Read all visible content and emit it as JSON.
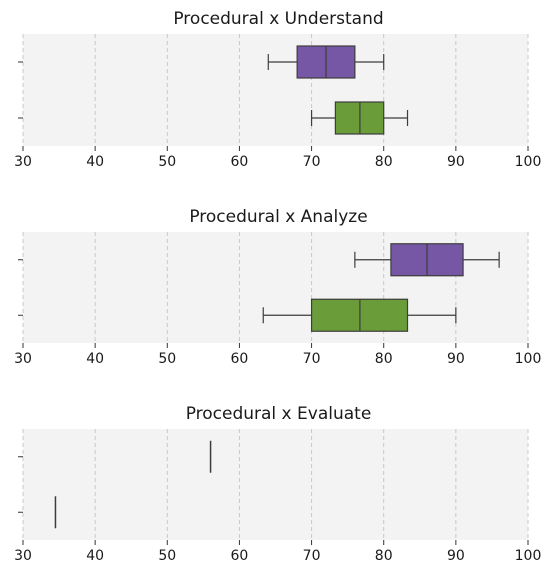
{
  "colors": {
    "panel_bg": "#f3f3f3",
    "grid": "#c8c8c8",
    "series_top": "#7657a6",
    "series_bottom": "#6a9c3a",
    "box_edge": "#3d3d3d"
  },
  "chart_data": [
    {
      "type": "box",
      "title": "Procedural x Understand",
      "xlim": [
        30,
        100
      ],
      "xticks": [
        30,
        40,
        50,
        60,
        70,
        80,
        90,
        100
      ],
      "grid": "vertical dashed",
      "boxes": [
        {
          "whisker_low": 64,
          "q1": 68,
          "median": 72,
          "q3": 76,
          "whisker_high": 80
        },
        {
          "whisker_low": 70,
          "q1": 73.3,
          "median": 76.7,
          "q3": 80,
          "whisker_high": 83.3
        }
      ]
    },
    {
      "type": "box",
      "title": "Procedural x Analyze",
      "xlim": [
        30,
        100
      ],
      "xticks": [
        30,
        40,
        50,
        60,
        70,
        80,
        90,
        100
      ],
      "grid": "vertical dashed",
      "boxes": [
        {
          "whisker_low": 76,
          "q1": 81,
          "median": 86,
          "q3": 91,
          "whisker_high": 96
        },
        {
          "whisker_low": 63.3,
          "q1": 70,
          "median": 76.7,
          "q3": 83.3,
          "whisker_high": 90
        }
      ]
    },
    {
      "type": "box",
      "title": "Procedural x Evaluate",
      "xlim": [
        30,
        100
      ],
      "xticks": [
        30,
        40,
        50,
        60,
        70,
        80,
        90,
        100
      ],
      "grid": "vertical dashed",
      "boxes": [
        {
          "whisker_low": 56,
          "q1": 56,
          "median": 56,
          "q3": 56,
          "whisker_high": 56
        },
        {
          "whisker_low": 34.5,
          "q1": 34.5,
          "median": 34.5,
          "q3": 34.5,
          "whisker_high": 34.5
        }
      ]
    }
  ]
}
